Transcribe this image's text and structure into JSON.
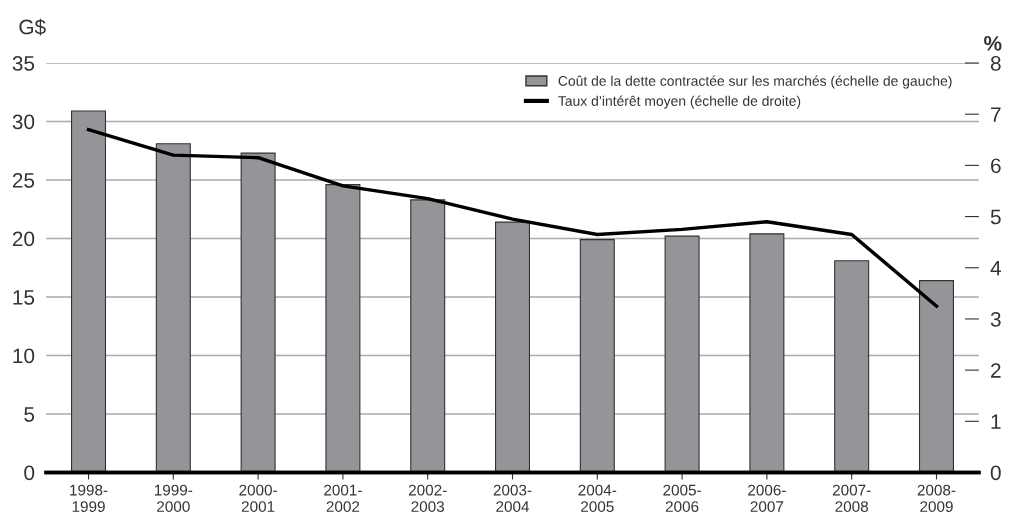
{
  "chart_data": {
    "type": "bar",
    "ylabel": "G$",
    "y2label": "%",
    "categories": [
      "1998-\n1999",
      "1999-\n2000",
      "2000-\n2001",
      "2001-\n2002",
      "2002-\n2003",
      "2003-\n2004",
      "2004-\n2005",
      "2005-\n2006",
      "2006-\n2007",
      "2007-\n2008",
      "2008-\n2009"
    ],
    "series": [
      {
        "name": "Coût de la dette contractée sur les marchés (échelle de gauche)",
        "color": "#939598",
        "values": [
          30.9,
          28.1,
          27.3,
          24.6,
          23.3,
          21.4,
          19.9,
          20.2,
          20.4,
          18.1,
          16.4
        ]
      },
      {
        "name": "Taux d’intérêt moyen (échelle de droite)",
        "type": "line",
        "axis": "y2",
        "color": "#000000",
        "values": [
          6.7,
          6.2,
          6.15,
          5.6,
          5.35,
          4.95,
          4.65,
          4.75,
          4.9,
          4.65,
          3.25
        ]
      }
    ],
    "ylim": [
      0,
      35
    ],
    "yticks": [
      0,
      5,
      10,
      15,
      20,
      25,
      30,
      35
    ],
    "y2lim": [
      0,
      8
    ],
    "y2ticks": [
      0,
      1,
      2,
      3,
      4,
      5,
      6,
      7,
      8
    ],
    "grid": "y",
    "legend": "top right",
    "marker": "none",
    "line_style": "solid"
  }
}
